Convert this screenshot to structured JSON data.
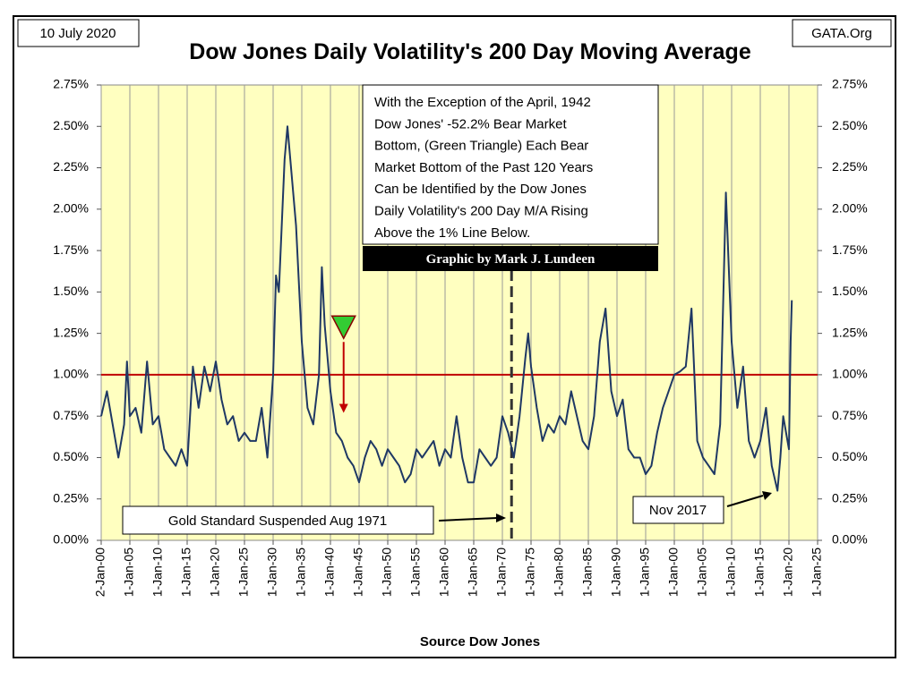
{
  "chart_data": {
    "type": "line",
    "title": "Dow Jones Daily Volatility's 200 Day Moving Average",
    "date_label": "10 July 2020",
    "source_label": "GATA.Org",
    "x_label": "Source Dow Jones",
    "credit": "Graphic by Mark J. Lundeen",
    "note_lines": [
      "With the Exception of the April, 1942",
      "Dow Jones' -52.2% Bear Market",
      "Bottom, (Green Triangle) Each Bear",
      "Market Bottom of the Past 120 Years",
      "Can be Identified by the Dow Jones",
      "Daily Volatility's 200 Day M/A Rising",
      "Above the 1% Line Below."
    ],
    "gold_note": "Gold Standard Suspended Aug 1971",
    "nov_note": "Nov 2017",
    "color": "#1f3864",
    "background": "#ffffc0",
    "grid": "x",
    "xlim": [
      1900,
      2025
    ],
    "ylim": [
      0,
      2.75
    ],
    "xticks": [
      {
        "value": 1900,
        "label": "2-Jan-00"
      },
      {
        "value": 1905,
        "label": "1-Jan-05"
      },
      {
        "value": 1910,
        "label": "1-Jan-10"
      },
      {
        "value": 1915,
        "label": "1-Jan-15"
      },
      {
        "value": 1920,
        "label": "1-Jan-20"
      },
      {
        "value": 1925,
        "label": "1-Jan-25"
      },
      {
        "value": 1930,
        "label": "1-Jan-30"
      },
      {
        "value": 1935,
        "label": "1-Jan-35"
      },
      {
        "value": 1940,
        "label": "1-Jan-40"
      },
      {
        "value": 1945,
        "label": "1-Jan-45"
      },
      {
        "value": 1950,
        "label": "1-Jan-50"
      },
      {
        "value": 1955,
        "label": "1-Jan-55"
      },
      {
        "value": 1960,
        "label": "1-Jan-60"
      },
      {
        "value": 1965,
        "label": "1-Jan-65"
      },
      {
        "value": 1970,
        "label": "1-Jan-70"
      },
      {
        "value": 1975,
        "label": "1-Jan-75"
      },
      {
        "value": 1980,
        "label": "1-Jan-80"
      },
      {
        "value": 1985,
        "label": "1-Jan-85"
      },
      {
        "value": 1990,
        "label": "1-Jan-90"
      },
      {
        "value": 1995,
        "label": "1-Jan-95"
      },
      {
        "value": 2000,
        "label": "1-Jan-00"
      },
      {
        "value": 2005,
        "label": "1-Jan-05"
      },
      {
        "value": 2010,
        "label": "1-Jan-10"
      },
      {
        "value": 2015,
        "label": "1-Jan-15"
      },
      {
        "value": 2020,
        "label": "1-Jan-20"
      },
      {
        "value": 2025,
        "label": "1-Jan-25"
      }
    ],
    "yticks": [
      {
        "value": 0,
        "label": "0.00%"
      },
      {
        "value": 0.25,
        "label": "0.25%"
      },
      {
        "value": 0.5,
        "label": "0.50%"
      },
      {
        "value": 0.75,
        "label": "0.75%"
      },
      {
        "value": 1,
        "label": "1.00%"
      },
      {
        "value": 1.25,
        "label": "1.25%"
      },
      {
        "value": 1.5,
        "label": "1.50%"
      },
      {
        "value": 1.75,
        "label": "1.75%"
      },
      {
        "value": 2,
        "label": "2.00%"
      },
      {
        "value": 2.25,
        "label": "2.25%"
      },
      {
        "value": 2.5,
        "label": "2.50%"
      },
      {
        "value": 2.75,
        "label": "2.75%"
      }
    ],
    "reference_line": {
      "value": 1,
      "color": "#c00000"
    },
    "vline": 1971.6,
    "triangle": {
      "x": 1942.3,
      "y": 1.22,
      "arrow_to": 0.77,
      "color": "#33cc33"
    },
    "x": [
      1900,
      1901,
      1902,
      1903,
      1904,
      1904.5,
      1905,
      1906,
      1907,
      1908,
      1909,
      1910,
      1911,
      1912,
      1913,
      1914,
      1915,
      1916,
      1917,
      1918,
      1919,
      1920,
      1921,
      1922,
      1923,
      1924,
      1925,
      1926,
      1927,
      1928,
      1929,
      1930,
      1930.5,
      1931,
      1932,
      1932.5,
      1933,
      1934,
      1935,
      1936,
      1937,
      1938,
      1938.5,
      1939,
      1940,
      1941,
      1942,
      1943,
      1944,
      1945,
      1946,
      1947,
      1948,
      1949,
      1950,
      1951,
      1952,
      1953,
      1954,
      1955,
      1956,
      1957,
      1958,
      1959,
      1960,
      1961,
      1962,
      1963,
      1964,
      1965,
      1966,
      1967,
      1968,
      1969,
      1970,
      1971,
      1972,
      1973,
      1974,
      1974.5,
      1975,
      1976,
      1977,
      1978,
      1979,
      1980,
      1981,
      1982,
      1983,
      1984,
      1985,
      1986,
      1987,
      1988,
      1989,
      1990,
      1991,
      1992,
      1993,
      1994,
      1995,
      1996,
      1997,
      1998,
      1999,
      2000,
      2001,
      2002,
      2003,
      2004,
      2005,
      2006,
      2007,
      2008,
      2009,
      2010,
      2011,
      2012,
      2013,
      2014,
      2015,
      2016,
      2017,
      2018,
      2018.5,
      2019,
      2020,
      2020.3,
      2020.5
    ],
    "values": [
      0.75,
      0.9,
      0.7,
      0.5,
      0.7,
      1.08,
      0.75,
      0.8,
      0.65,
      1.08,
      0.7,
      0.75,
      0.55,
      0.5,
      0.45,
      0.55,
      0.45,
      1.05,
      0.8,
      1.05,
      0.9,
      1.08,
      0.85,
      0.7,
      0.75,
      0.6,
      0.65,
      0.6,
      0.6,
      0.8,
      0.5,
      1.0,
      1.6,
      1.5,
      2.3,
      2.5,
      2.3,
      1.9,
      1.2,
      0.8,
      0.7,
      1.0,
      1.65,
      1.3,
      0.9,
      0.65,
      0.6,
      0.5,
      0.45,
      0.35,
      0.5,
      0.6,
      0.55,
      0.45,
      0.55,
      0.5,
      0.45,
      0.35,
      0.4,
      0.55,
      0.5,
      0.55,
      0.6,
      0.45,
      0.55,
      0.5,
      0.75,
      0.5,
      0.35,
      0.35,
      0.55,
      0.5,
      0.45,
      0.5,
      0.75,
      0.65,
      0.5,
      0.75,
      1.1,
      1.25,
      1.05,
      0.8,
      0.6,
      0.7,
      0.65,
      0.75,
      0.7,
      0.9,
      0.75,
      0.6,
      0.55,
      0.75,
      1.2,
      1.4,
      0.9,
      0.75,
      0.85,
      0.55,
      0.5,
      0.5,
      0.4,
      0.45,
      0.65,
      0.8,
      0.9,
      1.0,
      1.02,
      1.05,
      1.4,
      0.6,
      0.5,
      0.45,
      0.4,
      0.7,
      2.1,
      1.2,
      0.8,
      1.05,
      0.6,
      0.5,
      0.6,
      0.8,
      0.45,
      0.3,
      0.5,
      0.75,
      0.55,
      1.2,
      1.45
    ]
  }
}
